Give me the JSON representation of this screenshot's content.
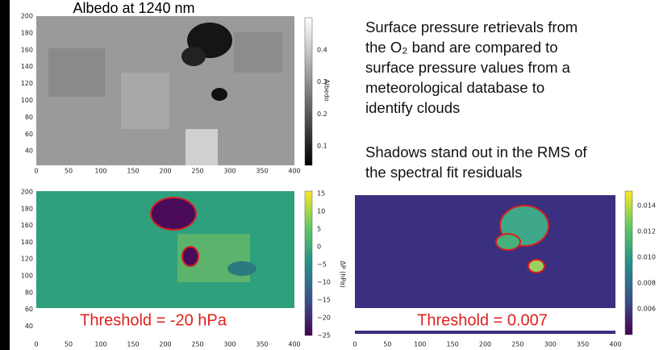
{
  "panels": [
    {
      "title": "Albedo at 1240 nm",
      "yticks": [
        "200",
        "180",
        "160",
        "140",
        "120",
        "100",
        "80",
        "60",
        "40"
      ],
      "xticks": [
        "0",
        "50",
        "100",
        "150",
        "200",
        "250",
        "300",
        "350",
        "400"
      ],
      "colorbar_ticks": [
        "0.4",
        "0.3",
        "0.2",
        "0.1"
      ],
      "colorbar_label": "Albedo"
    },
    {
      "yticks": [
        "200",
        "180",
        "160",
        "140",
        "120",
        "100",
        "80",
        "60",
        "40"
      ],
      "xticks": [
        "0",
        "50",
        "100",
        "150",
        "200",
        "250",
        "300",
        "350",
        "400"
      ],
      "colorbar_ticks": [
        "15",
        "10",
        "5",
        "0",
        "−5",
        "−10",
        "−15",
        "−20",
        "−25"
      ],
      "colorbar_label": "ΔP (hPa)",
      "threshold": "Threshold = -20 hPa"
    },
    {
      "xticks": [
        "0",
        "50",
        "100",
        "150",
        "200",
        "250",
        "300",
        "350",
        "400"
      ],
      "colorbar_ticks": [
        "0.014",
        "0.012",
        "0.010",
        "0.008",
        "0.006"
      ],
      "threshold": "Threshold = 0.007"
    }
  ],
  "text": {
    "paragraph1": [
      "Surface pressure retrievals from",
      "the O₂ band are compared to",
      "surface pressure values from a",
      "meteorological database to",
      "identify clouds"
    ],
    "paragraph2": [
      "Shadows stand out in the RMS of",
      "the spectral fit residuals"
    ]
  }
}
